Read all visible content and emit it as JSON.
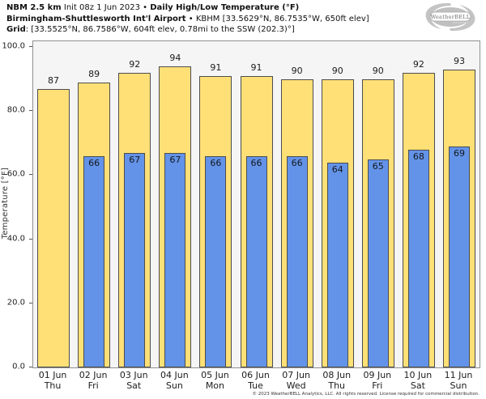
{
  "header": {
    "line1_b1": "NBM 2.5 km",
    "line1_r1": " Init 08z 1 Jun 2023 • ",
    "line1_b2": "Daily High/Low Temperature (°F)",
    "line2_b": "Birmingham-Shuttlesworth Int'l Airport",
    "line2_r": " • KBHM [33.5629°N, 86.7535°W, 650ft elev]",
    "line3_b": "Grid",
    "line3_r": ": [33.5525°N, 86.7586°W, 604ft elev, 0.78mi to the SSW (202.3)°]"
  },
  "logo": {
    "brand": "WeatherBELL",
    "swirl_color": "#c0c0c0"
  },
  "chart_data": {
    "type": "bar",
    "title": "Daily High/Low Temperature (°F)",
    "categories": [
      {
        "date": "01 Jun",
        "day": "Thu"
      },
      {
        "date": "02 Jun",
        "day": "Fri"
      },
      {
        "date": "03 Jun",
        "day": "Sat"
      },
      {
        "date": "04 Jun",
        "day": "Sun"
      },
      {
        "date": "05 Jun",
        "day": "Mon"
      },
      {
        "date": "06 Jun",
        "day": "Tue"
      },
      {
        "date": "07 Jun",
        "day": "Wed"
      },
      {
        "date": "08 Jun",
        "day": "Thu"
      },
      {
        "date": "09 Jun",
        "day": "Fri"
      },
      {
        "date": "10 Jun",
        "day": "Sat"
      },
      {
        "date": "11 Jun",
        "day": "Sun"
      }
    ],
    "series": [
      {
        "name": "Daily High",
        "color": "#ffe077",
        "values": [
          87,
          89,
          92,
          94,
          91,
          91,
          90,
          90,
          90,
          92,
          93
        ]
      },
      {
        "name": "Daily Low",
        "color": "#6393e8",
        "values": [
          null,
          66,
          67,
          67,
          66,
          66,
          66,
          64,
          65,
          68,
          69
        ]
      }
    ],
    "ylabel": "Temperature [°F]",
    "yticks": {
      "values": [
        0,
        20,
        40,
        60,
        80,
        100
      ],
      "labels": [
        "0.0",
        "20.0",
        "40.0",
        "60.0",
        "80.0",
        "100.0"
      ]
    },
    "ylim": [
      0,
      101.8
    ],
    "grid": false,
    "legend_position": "none",
    "bar_outline_color": "#4d4d4d",
    "plot_background": "#f5f5f5"
  },
  "footer": "© 2023 WeatherBELL Analytics, LLC. All rights reserved. License required for commercial distribution."
}
